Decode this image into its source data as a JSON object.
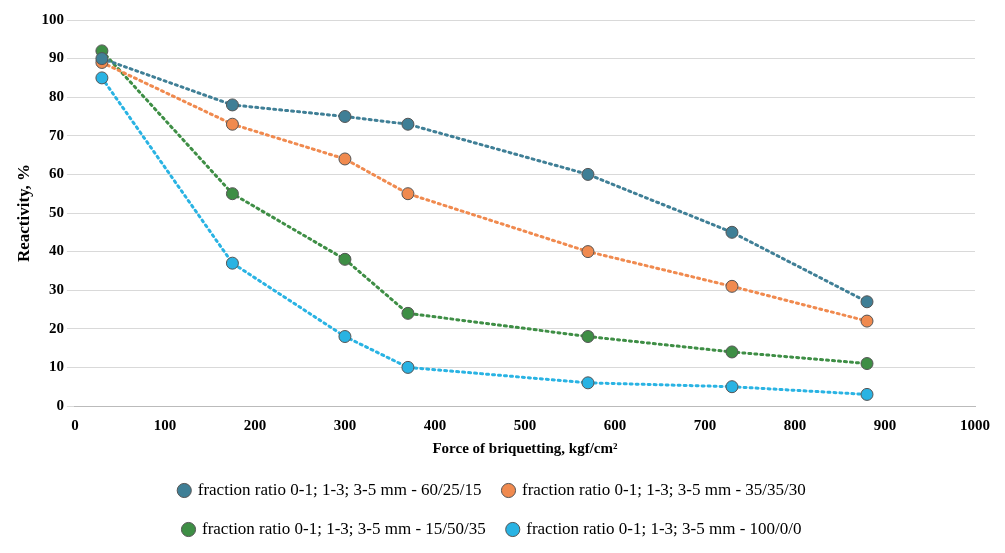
{
  "chart_data": {
    "type": "line",
    "xlabel": "Force of briquetting, kgf/cm²",
    "ylabel": "Reactivity, %",
    "x": [
      30,
      175,
      300,
      370,
      570,
      730,
      880
    ],
    "series": [
      {
        "name": "fraction ratio 0-1; 1-3; 3-5 mm - 60/25/15",
        "color": "#3f7f96",
        "values": [
          90,
          78,
          75,
          73,
          60,
          45,
          27
        ]
      },
      {
        "name": "fraction ratio 0-1; 1-3; 3-5 mm - 35/35/30",
        "color": "#f08a4f",
        "values": [
          89,
          73,
          64,
          55,
          40,
          31,
          22
        ]
      },
      {
        "name": "fraction ratio 0-1; 1-3; 3-5 mm - 15/50/35",
        "color": "#3e8e45",
        "values": [
          92,
          55,
          38,
          24,
          18,
          14,
          11
        ]
      },
      {
        "name": "fraction ratio 0-1; 1-3; 3-5 mm - 100/0/0",
        "color": "#29b3e3",
        "values": [
          85,
          37,
          18,
          10,
          6,
          5,
          3
        ]
      }
    ],
    "xlim": [
      0,
      1000
    ],
    "xticks": [
      0,
      100,
      200,
      300,
      400,
      500,
      600,
      700,
      800,
      900,
      1000
    ],
    "ylim": [
      0,
      100
    ],
    "yticks": [
      0,
      10,
      20,
      30,
      40,
      50,
      60,
      70,
      80,
      90,
      100
    ],
    "grid": "y",
    "legend": "bottom",
    "marker": "circle",
    "line_style": "dotted"
  }
}
